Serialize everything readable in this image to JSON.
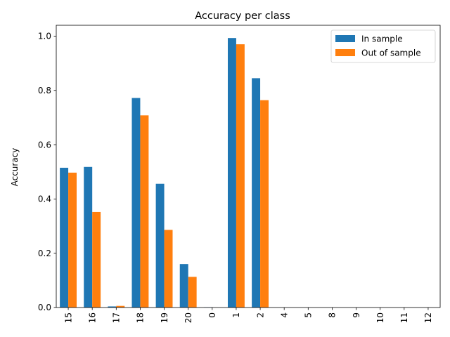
{
  "chart_data": {
    "type": "bar",
    "title": "Accuracy per class",
    "xlabel": "",
    "ylabel": "Accuracy",
    "categories": [
      "15",
      "16",
      "17",
      "18",
      "19",
      "20",
      "0",
      "1",
      "2",
      "4",
      "5",
      "8",
      "9",
      "10",
      "11",
      "12"
    ],
    "series": [
      {
        "name": "In sample",
        "color": "#1f77b4",
        "values": [
          0.515,
          0.518,
          0.004,
          0.772,
          0.456,
          0.16,
          0.001,
          0.993,
          0.845,
          0,
          0,
          0,
          0,
          0,
          0,
          0
        ]
      },
      {
        "name": "Out of sample",
        "color": "#ff7f0e",
        "values": [
          0.497,
          0.352,
          0.006,
          0.708,
          0.286,
          0.113,
          0.0,
          0.97,
          0.764,
          0,
          0,
          0,
          0,
          0,
          0,
          0
        ]
      }
    ],
    "ylim": [
      0,
      1.04
    ],
    "yticks": [
      "0.0",
      "0.2",
      "0.4",
      "0.6",
      "0.8",
      "1.0"
    ],
    "legend": "top-right",
    "grid": false
  }
}
